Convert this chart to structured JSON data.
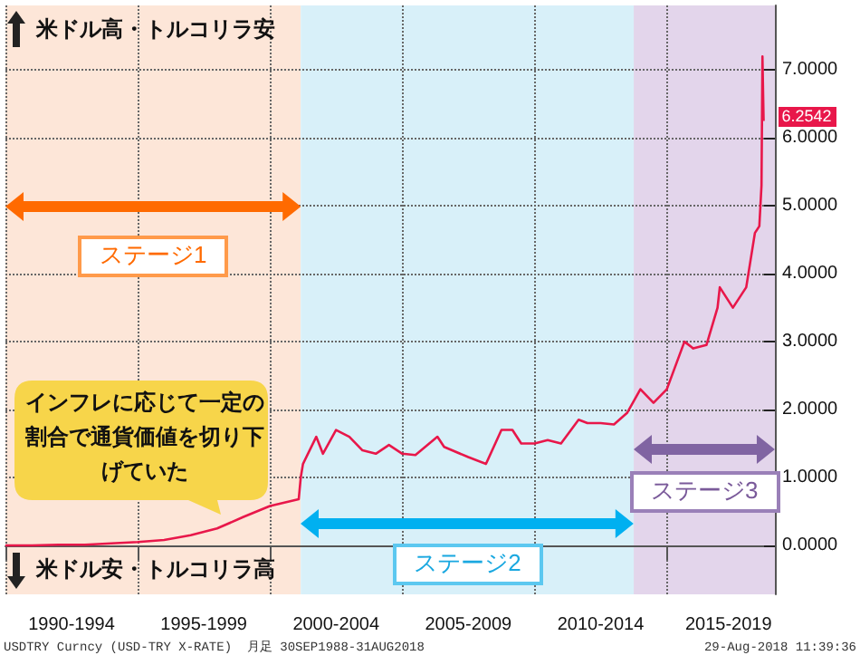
{
  "chart_data": {
    "type": "line",
    "x": [
      "1990-01",
      "1991-01",
      "1992-01",
      "1993-01",
      "1994-01",
      "1995-01",
      "1996-01",
      "1997-01",
      "1998-01",
      "1999-01",
      "2000-01",
      "2001-02",
      "2001-03",
      "2001-04",
      "2001-10",
      "2002-01",
      "2002-07",
      "2003-01",
      "2003-07",
      "2004-01",
      "2004-07",
      "2005-01",
      "2005-07",
      "2006-05",
      "2006-08",
      "2007-07",
      "2008-03",
      "2008-10",
      "2009-03",
      "2009-07",
      "2010-01",
      "2010-07",
      "2011-01",
      "2011-09",
      "2012-01",
      "2012-07",
      "2013-01",
      "2013-07",
      "2014-01",
      "2014-07",
      "2015-01",
      "2015-09",
      "2016-01",
      "2016-07",
      "2016-12",
      "2017-01",
      "2017-07",
      "2018-01",
      "2018-05",
      "2018-07-01",
      "2018-07-31",
      "2018-08-13",
      "2018-08-29"
    ],
    "series": [
      {
        "color": "#e8174a",
        "values": [
          0.0,
          0.0,
          0.01,
          0.01,
          0.03,
          0.05,
          0.08,
          0.15,
          0.25,
          0.42,
          0.58,
          0.68,
          1.0,
          1.2,
          1.6,
          1.35,
          1.7,
          1.6,
          1.4,
          1.35,
          1.48,
          1.35,
          1.33,
          1.6,
          1.45,
          1.3,
          1.2,
          1.7,
          1.7,
          1.5,
          1.5,
          1.55,
          1.5,
          1.85,
          1.8,
          1.8,
          1.78,
          1.95,
          2.3,
          2.1,
          2.3,
          3.0,
          2.9,
          2.95,
          3.5,
          3.8,
          3.5,
          3.8,
          4.6,
          4.7,
          5.3,
          7.2,
          6.25
        ]
      }
    ],
    "xlim": [
      "1990-01",
      "2019-02"
    ],
    "xticks": [
      {
        "value": "1990-01",
        "label": null
      },
      {
        "value": "1992-07",
        "label": "1990-1994"
      },
      {
        "value": "1995-01",
        "label": null
      },
      {
        "value": "1997-07",
        "label": "1995-1999"
      },
      {
        "value": "2000-01",
        "label": null
      },
      {
        "value": "2002-07",
        "label": "2000-2004"
      },
      {
        "value": "2005-01",
        "label": null
      },
      {
        "value": "2007-07",
        "label": "2005-2009"
      },
      {
        "value": "2010-01",
        "label": null
      },
      {
        "value": "2012-07",
        "label": "2010-2014"
      },
      {
        "value": "2015-01",
        "label": null
      },
      {
        "value": "2017-05",
        "label": "2015-2019"
      }
    ],
    "ylim": [
      -0.72,
      7.95
    ],
    "yticks": [
      {
        "value": 0,
        "label": "0.0000"
      },
      {
        "value": 1,
        "label": "1.0000"
      },
      {
        "value": 2,
        "label": "2.0000"
      },
      {
        "value": 3,
        "label": "3.0000"
      },
      {
        "value": 4,
        "label": "4.0000"
      },
      {
        "value": 5,
        "label": "5.0000"
      },
      {
        "value": 6,
        "label": "6.0000"
      },
      {
        "value": 7,
        "label": "7.0000"
      }
    ],
    "grid": true,
    "bands": [
      {
        "axis": "x",
        "from": "1990-01",
        "to": "2001-03",
        "label": "ステージ1",
        "color": "#fde6d8"
      },
      {
        "axis": "x",
        "from": "2001-03",
        "to": "2013-10",
        "label": "ステージ2",
        "color": "#d8f0f9"
      },
      {
        "axis": "x",
        "from": "2013-10",
        "to": "2019-02",
        "label": "ステージ3",
        "color": "#e3d5eb"
      }
    ],
    "annotations": [
      "米ドル高・トルコリラ安",
      "米ドル安・トルコリラ高",
      "インフレに応じて一定の割合で通貨価値を切り下げていた",
      "USDTRY Curncy (USD-TRY X-RATE)  月足 30SEP1988-31AUG2018",
      "29-Aug-2018 11:39:36",
      {
        "text": "6.2542",
        "x": "2018-08-29",
        "y": 6.2542
      }
    ]
  }
}
